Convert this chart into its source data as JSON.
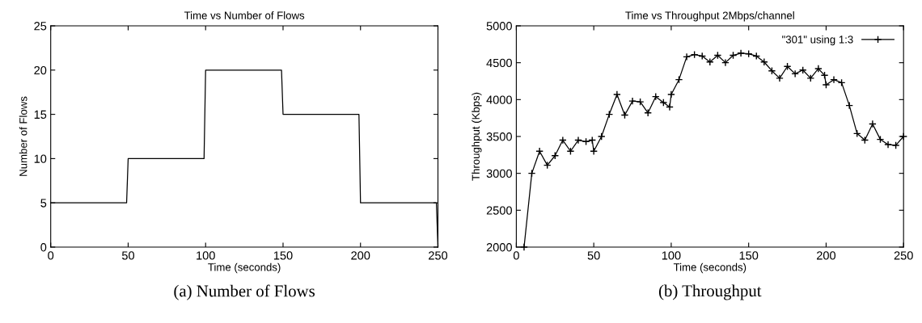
{
  "chart_data": [
    {
      "type": "line",
      "title": "Time vs Number of Flows",
      "xlabel": "Time (seconds)",
      "ylabel": "Number of Flows",
      "annotations": [
        "(a) Number of Flows"
      ],
      "series": [
        {
          "color": "#000000",
          "x": [
            0,
            49,
            50,
            99,
            100,
            149,
            150,
            199,
            200,
            249,
            250
          ],
          "values": [
            5,
            5,
            10,
            10,
            20,
            20,
            15,
            15,
            5,
            5,
            0
          ]
        }
      ],
      "xlim": [
        0,
        250
      ],
      "xticks": [
        0,
        50,
        100,
        150,
        200,
        250
      ],
      "ylim": [
        0,
        25
      ],
      "yticks": [
        0,
        5,
        10,
        15,
        20,
        25
      ],
      "grid": false,
      "legend": false,
      "marker": "none",
      "line_style": "solid"
    },
    {
      "type": "line",
      "title": "Time vs Throughput 2Mbps/channel",
      "xlabel": "Time (seconds)",
      "ylabel": "Throughput (Kbps)",
      "annotations": [
        "(b) Throughput"
      ],
      "series": [
        {
          "name": "\"301\" using 1:3",
          "color": "#000000",
          "x": [
            5,
            10,
            15,
            20,
            25,
            30,
            35,
            40,
            45,
            49,
            50,
            55,
            60,
            65,
            70,
            75,
            80,
            85,
            90,
            95,
            99,
            100,
            105,
            110,
            115,
            120,
            125,
            130,
            135,
            140,
            145,
            150,
            155,
            160,
            165,
            170,
            175,
            180,
            185,
            190,
            195,
            199,
            200,
            205,
            210,
            215,
            220,
            225,
            230,
            235,
            240,
            245,
            250
          ],
          "values": [
            2000,
            3000,
            3300,
            3110,
            3240,
            3450,
            3300,
            3450,
            3430,
            3450,
            3300,
            3500,
            3800,
            4070,
            3790,
            3980,
            3970,
            3820,
            4040,
            3960,
            3900,
            4070,
            4270,
            4580,
            4610,
            4590,
            4510,
            4600,
            4500,
            4600,
            4630,
            4620,
            4590,
            4510,
            4390,
            4290,
            4450,
            4350,
            4400,
            4290,
            4420,
            4330,
            4200,
            4270,
            4230,
            3920,
            3540,
            3450,
            3670,
            3460,
            3390,
            3380,
            3500
          ]
        }
      ],
      "xlim": [
        0,
        250
      ],
      "xticks": [
        0,
        50,
        100,
        150,
        200,
        250
      ],
      "ylim": [
        2000,
        5000
      ],
      "yticks": [
        2000,
        2500,
        3000,
        3500,
        4000,
        4500,
        5000
      ],
      "grid": false,
      "legend": "top right",
      "marker": "cross",
      "line_style": "solid"
    }
  ]
}
